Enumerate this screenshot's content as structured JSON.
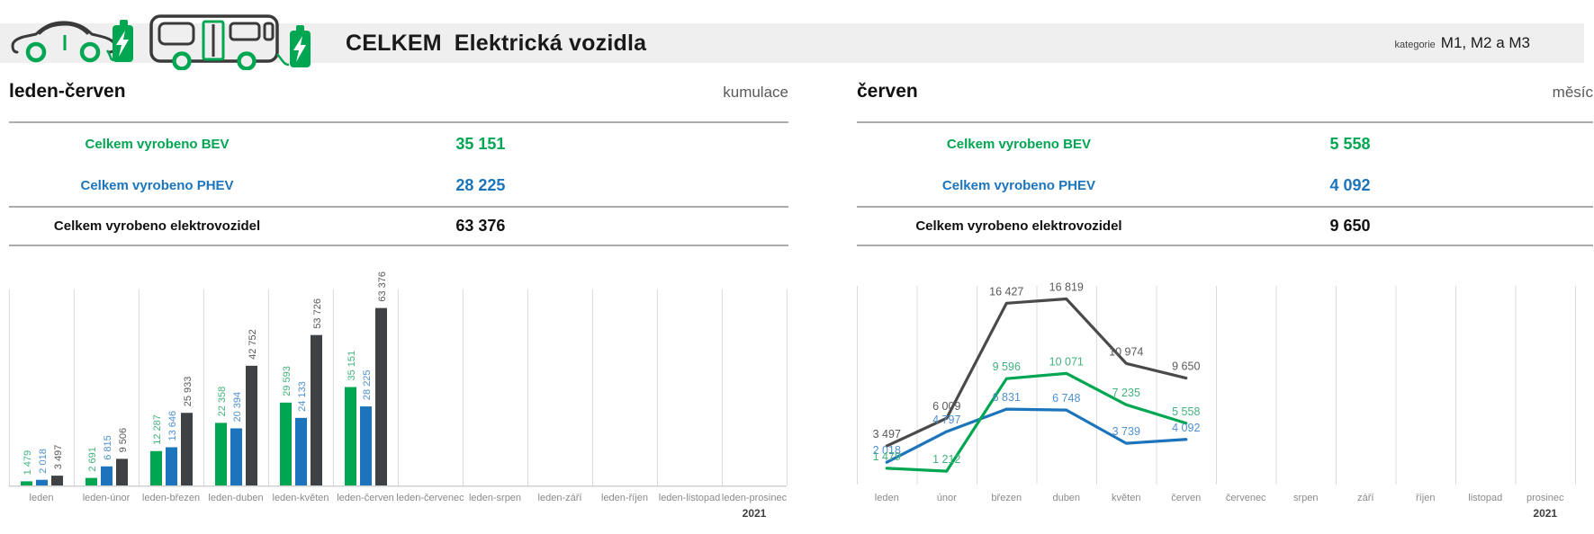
{
  "header": {
    "title_prefix": "CELKEM",
    "title_main": "Elektrická vozidla",
    "category_label": "kategorie",
    "category_value": "M1, M2 a M3",
    "icons": [
      "electric-car-charging-icon",
      "electric-bus-charging-icon"
    ]
  },
  "colors": {
    "strip_bg": "#efefef",
    "bev": "#00a651",
    "phev": "#1c75bc",
    "bar_total": "#3f4245",
    "line_total": "#4a4a4a",
    "bev_label": "#43b27c",
    "phev_label": "#4e90d0",
    "total_label": "#595959",
    "grid": "#dcdcdc",
    "baseline": "#d0d0d0",
    "axis_text": "#8a8a8a",
    "year_text": "#3f3f3f",
    "rule": "#ababab",
    "subtitle": "#595959",
    "icon_dark": "#3a3a3a"
  },
  "panels": [
    {
      "title": "leden-červen",
      "subtitle": "kumulace",
      "rows": [
        {
          "label": "Celkem vyrobeno BEV",
          "value": "35 151"
        },
        {
          "label": "Celkem vyrobeno PHEV",
          "value": "28 225"
        },
        {
          "label": "Celkem vyrobeno elektrovozidel",
          "value": "63 376"
        }
      ]
    },
    {
      "title": "červen",
      "subtitle": "měsíc",
      "rows": [
        {
          "label": "Celkem vyrobeno BEV",
          "value": "5 558"
        },
        {
          "label": "Celkem vyrobeno PHEV",
          "value": "4 092"
        },
        {
          "label": "Celkem vyrobeno elektrovozidel",
          "value": "9 650"
        }
      ]
    }
  ],
  "chart_data": [
    {
      "type": "bar",
      "title": "leden-červen (kumulace)",
      "categories": [
        "leden",
        "leden-únor",
        "leden-březen",
        "leden-duben",
        "leden-květen",
        "leden-červen",
        "leden-červenec",
        "leden-srpen",
        "leden-září",
        "leden-říjen",
        "leden-listopad",
        "leden-prosinec"
      ],
      "series": [
        {
          "name": "BEV",
          "key": "bev",
          "values": [
            1479,
            2691,
            12287,
            22358,
            29593,
            35151,
            null,
            null,
            null,
            null,
            null,
            null
          ]
        },
        {
          "name": "PHEV",
          "key": "phev",
          "values": [
            2018,
            6815,
            13646,
            20394,
            24133,
            28225,
            null,
            null,
            null,
            null,
            null,
            null
          ]
        },
        {
          "name": "Celkem elektrovozidla",
          "key": "total",
          "values": [
            3497,
            9506,
            25933,
            42752,
            53726,
            63376,
            null,
            null,
            null,
            null,
            null,
            null
          ]
        }
      ],
      "year_label": "2021",
      "xlabel": "",
      "ylabel": "",
      "ylim": [
        0,
        70000
      ],
      "grid": "vertical",
      "legend": "none",
      "value_labels": "rotated-90-above-bars"
    },
    {
      "type": "line",
      "title": "červen (měsíc)",
      "categories": [
        "leden",
        "únor",
        "březen",
        "duben",
        "květen",
        "červen",
        "červenec",
        "srpen",
        "září",
        "říjen",
        "listopad",
        "prosinec"
      ],
      "series": [
        {
          "name": "Celkem elektrovozidla",
          "key": "total",
          "values": [
            3497,
            6009,
            16427,
            16819,
            10974,
            9650,
            null,
            null,
            null,
            null,
            null,
            null
          ]
        },
        {
          "name": "PHEV",
          "key": "phev",
          "values": [
            2018,
            4797,
            6831,
            6748,
            3739,
            4092,
            null,
            null,
            null,
            null,
            null,
            null
          ]
        },
        {
          "name": "BEV",
          "key": "bev",
          "values": [
            1479,
            1212,
            9596,
            10071,
            7235,
            5558,
            null,
            null,
            null,
            null,
            null,
            null
          ]
        }
      ],
      "year_label": "2021",
      "xlabel": "",
      "ylabel": "",
      "ylim": [
        0,
        18000
      ],
      "grid": "vertical",
      "legend": "none",
      "value_labels": "above-points"
    }
  ]
}
